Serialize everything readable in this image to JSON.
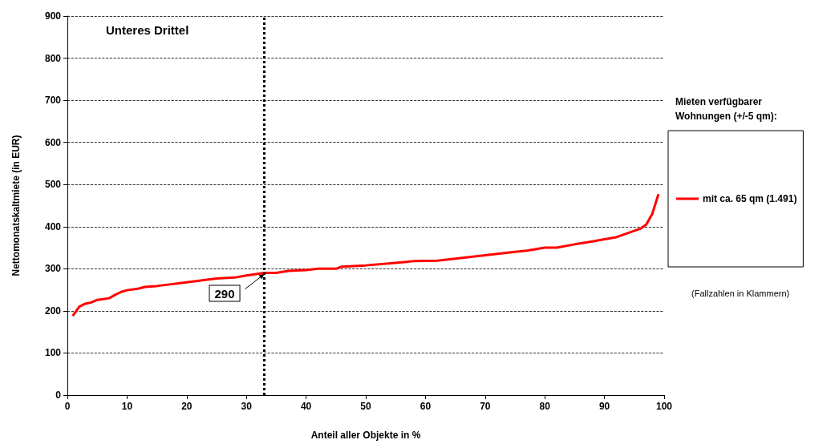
{
  "chart_data": {
    "type": "line",
    "xlabel": "Anteil aller Objekte in %",
    "ylabel": "Nettomonatskaltmiete (in EUR)",
    "legend_title": "Mieten verfügbarer Wohnungen (+/-5 qm):",
    "annotations": [
      "Unteres Drittel",
      {
        "text": "290",
        "x": 33,
        "y": 290
      },
      "(Fallzahlen in Klammern)"
    ],
    "series": [
      {
        "name": "mit ca. 65 qm (1.491)",
        "color": "#ff0000",
        "x": [
          1,
          2,
          3,
          4,
          5,
          7,
          8,
          9,
          10,
          12,
          13,
          15,
          20,
          25,
          28,
          30,
          33,
          35,
          37,
          40,
          42,
          45,
          46,
          50,
          55,
          58,
          62,
          65,
          70,
          75,
          77,
          80,
          82,
          85,
          88,
          90,
          92,
          94,
          96,
          97,
          98,
          99
        ],
        "values": [
          190,
          210,
          217,
          220,
          226,
          230,
          238,
          245,
          249,
          253,
          257,
          259,
          268,
          277,
          279,
          284,
          290,
          290,
          295,
          297,
          300,
          300,
          305,
          308,
          314,
          318,
          319,
          324,
          332,
          340,
          343,
          350,
          350,
          358,
          365,
          370,
          375,
          385,
          395,
          405,
          430,
          475
        ]
      }
    ],
    "xlim": [
      0,
      100
    ],
    "xticks": [
      0,
      10,
      20,
      30,
      40,
      50,
      60,
      70,
      80,
      90,
      100
    ],
    "ylim": [
      0,
      900
    ],
    "yticks": [
      0,
      100,
      200,
      300,
      400,
      500,
      600,
      700,
      800,
      900
    ],
    "grid": "y",
    "legend": "right",
    "marker": "none",
    "line_style": "solid",
    "ref_lines": [
      {
        "axis": "x",
        "value": 33,
        "color": "#000000",
        "line_style": "dotted"
      }
    ]
  }
}
